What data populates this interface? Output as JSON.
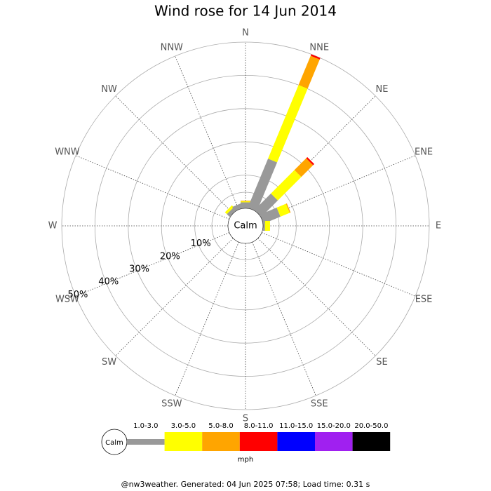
{
  "chart_data": {
    "type": "windrose",
    "title": "Wind rose for 14 Jun 2014",
    "directions": [
      "N",
      "NNE",
      "NE",
      "ENE",
      "E",
      "ESE",
      "SE",
      "SSE",
      "S",
      "SSW",
      "SW",
      "WSW",
      "W",
      "WNW",
      "NW",
      "NNW"
    ],
    "calm_label": "Calm",
    "rlim": [
      0,
      50
    ],
    "rticks": [
      {
        "value": 10,
        "label": "10%"
      },
      {
        "value": 20,
        "label": "20%"
      },
      {
        "value": 30,
        "label": "30%"
      },
      {
        "value": 40,
        "label": "40%"
      },
      {
        "value": 50,
        "label": "50%"
      }
    ],
    "series": [
      {
        "name": "1.0-3.0",
        "color": "#999999",
        "values": [
          1.8,
          16,
          7,
          5.5,
          0.6,
          0,
          0,
          0,
          0,
          0,
          0,
          0,
          0,
          0,
          1.2,
          1.5
        ]
      },
      {
        "name": "3.0-5.0",
        "color": "#ffff00",
        "values": [
          0.3,
          24,
          10,
          3,
          1.5,
          0,
          0,
          0,
          0,
          0,
          0,
          0,
          0,
          0,
          0.8,
          0
        ]
      },
      {
        "name": "5.0-8.0",
        "color": "#ffa500",
        "values": [
          0.2,
          9.5,
          5,
          0.3,
          0,
          0,
          0,
          0,
          0,
          0,
          0,
          0,
          0,
          0,
          0,
          0
        ]
      },
      {
        "name": "8.0-11.0",
        "color": "#ff0000",
        "values": [
          0,
          0.5,
          0.5,
          0,
          0,
          0,
          0,
          0,
          0,
          0,
          0,
          0,
          0,
          0,
          0,
          0
        ]
      },
      {
        "name": "11.0-15.0",
        "color": "#0000ff",
        "values": [
          0,
          0,
          0,
          0,
          0,
          0,
          0,
          0,
          0,
          0,
          0,
          0,
          0,
          0,
          0,
          0
        ]
      },
      {
        "name": "15.0-20.0",
        "color": "#a020f0",
        "values": [
          0,
          0,
          0,
          0,
          0,
          0,
          0,
          0,
          0,
          0,
          0,
          0,
          0,
          0,
          0,
          0
        ]
      },
      {
        "name": "20.0-50.0",
        "color": "#000000",
        "values": [
          0,
          0,
          0,
          0,
          0,
          0,
          0,
          0,
          0,
          0,
          0,
          0,
          0,
          0,
          0,
          0
        ]
      }
    ],
    "unit": "mph",
    "footer": "@nw3weather. Generated: 04 Jun 2025 07:58; Load time: 0.31 s"
  }
}
